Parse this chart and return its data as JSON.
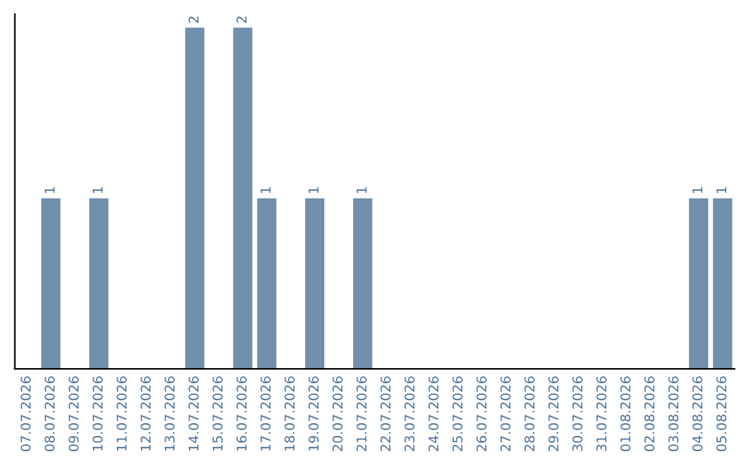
{
  "chart_data": {
    "type": "bar",
    "categories": [
      "07.07.2026",
      "08.07.2026",
      "09.07.2026",
      "10.07.2026",
      "11.07.2026",
      "12.07.2026",
      "13.07.2026",
      "14.07.2026",
      "15.07.2026",
      "16.07.2026",
      "17.07.2026",
      "18.07.2026",
      "19.07.2026",
      "20.07.2026",
      "21.07.2026",
      "22.07.2026",
      "23.07.2026",
      "24.07.2026",
      "25.07.2026",
      "26.07.2026",
      "27.07.2026",
      "28.07.2026",
      "29.07.2026",
      "30.07.2026",
      "31.07.2026",
      "01.08.2026",
      "02.08.2026",
      "03.08.2026",
      "04.08.2026",
      "05.08.2026"
    ],
    "values": [
      0,
      1,
      0,
      1,
      0,
      0,
      0,
      2,
      0,
      2,
      1,
      0,
      1,
      0,
      1,
      0,
      0,
      0,
      0,
      0,
      0,
      0,
      0,
      0,
      0,
      0,
      0,
      0,
      1,
      1
    ],
    "value_labels": [
      null,
      "1",
      null,
      "1",
      null,
      null,
      null,
      "2",
      null,
      "2",
      "1",
      null,
      "1",
      null,
      "1",
      null,
      null,
      null,
      null,
      null,
      null,
      null,
      null,
      null,
      null,
      null,
      null,
      null,
      "1",
      "1"
    ],
    "color": "#6f8fad",
    "tick_labels": "x",
    "grid": false,
    "legend": false
  }
}
